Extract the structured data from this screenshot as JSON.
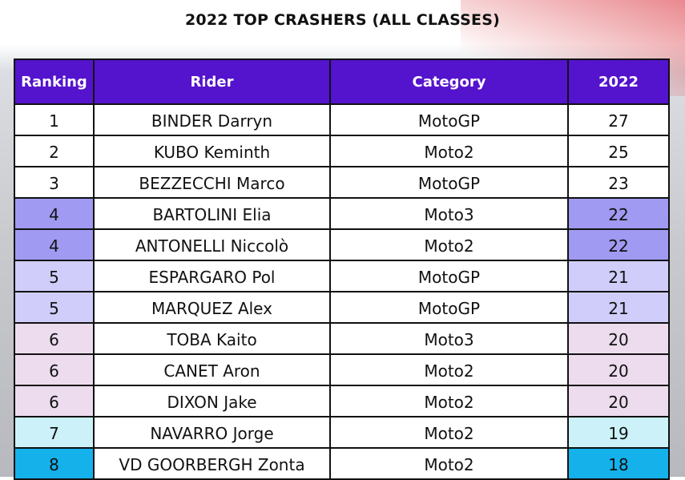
{
  "title": "2022 TOP CRASHERS (ALL CLASSES)",
  "headers": [
    "Ranking",
    "Rider",
    "Category",
    "2022"
  ],
  "chart_data": {
    "type": "table",
    "title": "2022 TOP CRASHERS (ALL CLASSES)",
    "columns": [
      "Ranking",
      "Rider",
      "Category",
      "2022"
    ],
    "rows": [
      {
        "ranking": "1",
        "rider": "BINDER Darryn",
        "category": "MotoGP",
        "value": "27",
        "highlight": "#ffffff"
      },
      {
        "ranking": "2",
        "rider": "KUBO Keminth",
        "category": "Moto2",
        "value": "25",
        "highlight": "#ffffff"
      },
      {
        "ranking": "3",
        "rider": "BEZZECCHI Marco",
        "category": "MotoGP",
        "value": "23",
        "highlight": "#ffffff"
      },
      {
        "ranking": "4",
        "rider": "BARTOLINI Elia",
        "category": "Moto3",
        "value": "22",
        "highlight": "#a09af2"
      },
      {
        "ranking": "4",
        "rider": "ANTONELLI Niccolò",
        "category": "Moto2",
        "value": "22",
        "highlight": "#a09af2"
      },
      {
        "ranking": "5",
        "rider": "ESPARGARO Pol",
        "category": "MotoGP",
        "value": "21",
        "highlight": "#d0cdfb"
      },
      {
        "ranking": "5",
        "rider": "MARQUEZ Alex",
        "category": "MotoGP",
        "value": "21",
        "highlight": "#d0cdfb"
      },
      {
        "ranking": "6",
        "rider": "TOBA Kaito",
        "category": "Moto3",
        "value": "20",
        "highlight": "#ecdcee"
      },
      {
        "ranking": "6",
        "rider": "CANET Aron",
        "category": "Moto2",
        "value": "20",
        "highlight": "#ecdcee"
      },
      {
        "ranking": "6",
        "rider": "DIXON Jake",
        "category": "Moto2",
        "value": "20",
        "highlight": "#ecdcee"
      },
      {
        "ranking": "7",
        "rider": "NAVARRO Jorge",
        "category": "Moto2",
        "value": "19",
        "highlight": "#ccf1f8"
      },
      {
        "ranking": "8",
        "rider": "VD GOORBERGH Zonta",
        "category": "Moto2",
        "value": "18",
        "highlight": "#14b1ea"
      }
    ]
  }
}
